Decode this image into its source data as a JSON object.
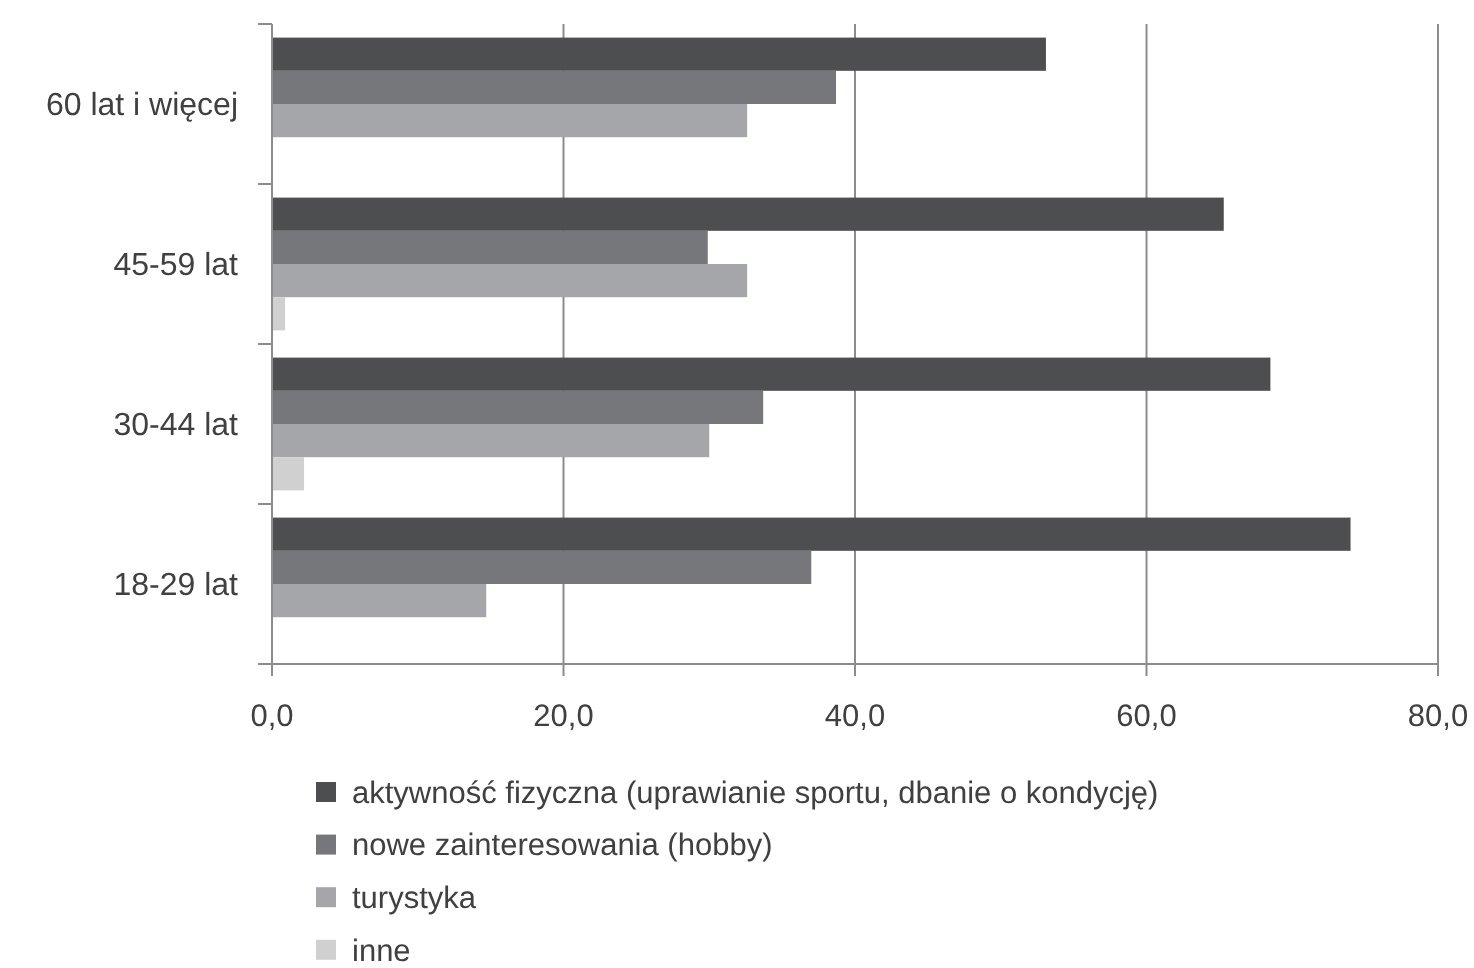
{
  "chart_data": {
    "type": "bar",
    "orientation": "horizontal",
    "categories": [
      "60 lat i więcej",
      "45-59 lat",
      "30-44 lat",
      "18-29 lat"
    ],
    "series": [
      {
        "name": "aktywność fizyczna (uprawianie sportu, dbanie o kondycję)",
        "color": "#4d4e50",
        "values": [
          53.1,
          65.3,
          68.5,
          74.0
        ]
      },
      {
        "name": "nowe zainteresowania (hobby)",
        "color": "#76777b",
        "values": [
          38.7,
          29.9,
          33.7,
          37.0
        ]
      },
      {
        "name": "turystyka",
        "color": "#a5a6a9",
        "values": [
          32.6,
          32.6,
          30.0,
          14.7
        ]
      },
      {
        "name": "inne",
        "color": "#d0d0d1",
        "values": [
          null,
          0.9,
          2.2,
          null
        ]
      }
    ],
    "xlim": [
      0,
      80
    ],
    "xticks": [
      {
        "value": 0,
        "label": "0,0"
      },
      {
        "value": 20,
        "label": "20,0"
      },
      {
        "value": 40,
        "label": "40,0"
      },
      {
        "value": 60,
        "label": "60,0"
      },
      {
        "value": 80,
        "label": "80,0"
      }
    ],
    "grid": "x",
    "legend": "bottom"
  }
}
